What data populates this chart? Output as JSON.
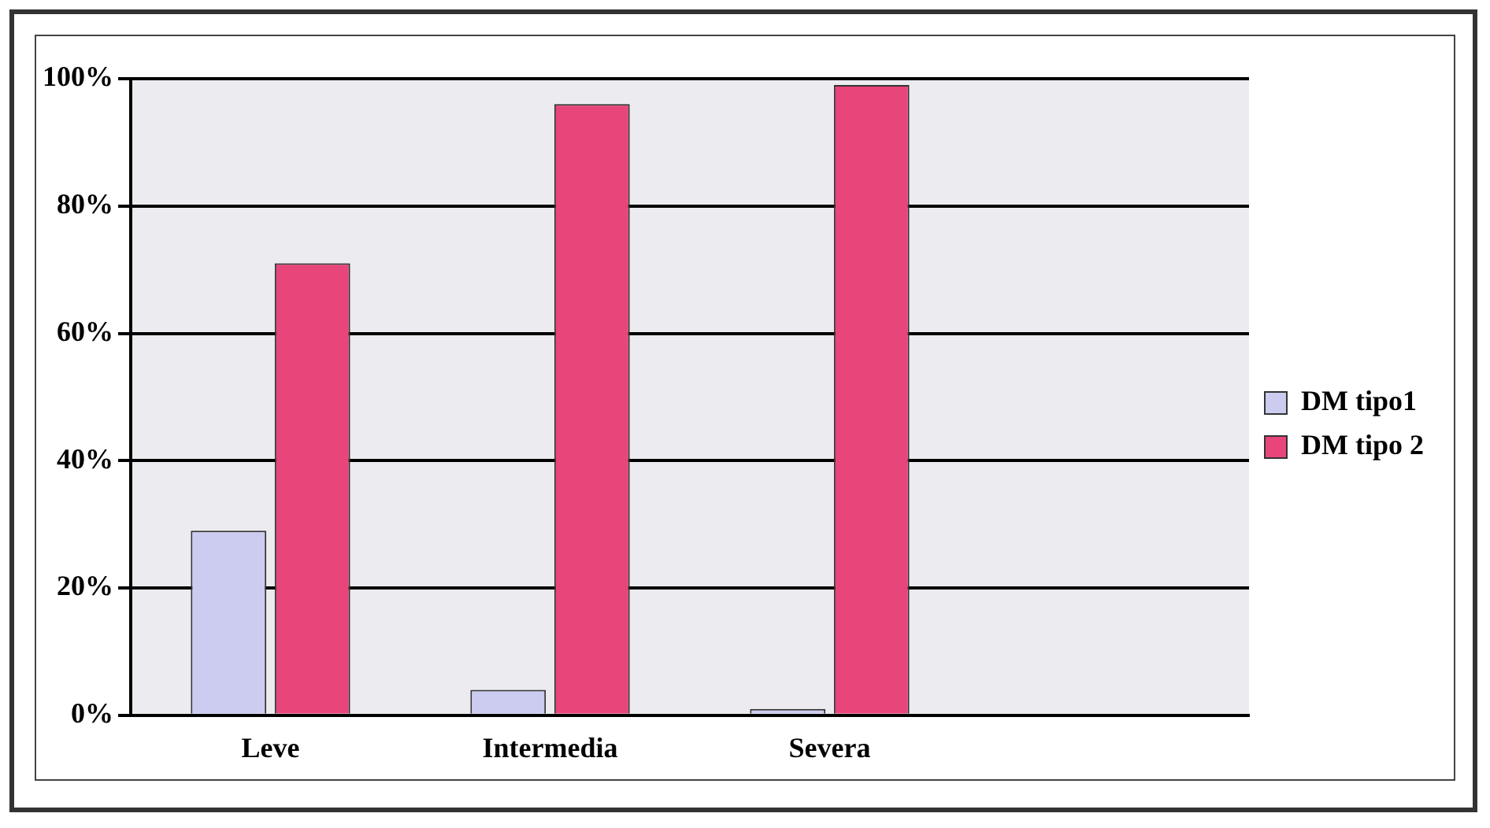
{
  "chart_data": {
    "type": "bar",
    "categories": [
      "Leve",
      "Intermedia",
      "Severa",
      null
    ],
    "series": [
      {
        "name": "DM tipo1",
        "color": "#ccccf0",
        "values": [
          29,
          4,
          1,
          null
        ]
      },
      {
        "name": "DM tipo 2",
        "color": "#e8457a",
        "values": [
          71,
          96,
          99,
          null
        ]
      }
    ],
    "ylim": [
      0,
      100
    ],
    "yticks": [
      {
        "value": 0,
        "label": "0%"
      },
      {
        "value": 20,
        "label": "20%"
      },
      {
        "value": 40,
        "label": "40%"
      },
      {
        "value": 60,
        "label": "60%"
      },
      {
        "value": 80,
        "label": "80%"
      },
      {
        "value": 100,
        "label": "100%"
      }
    ],
    "grid": "y",
    "legend": "right"
  }
}
